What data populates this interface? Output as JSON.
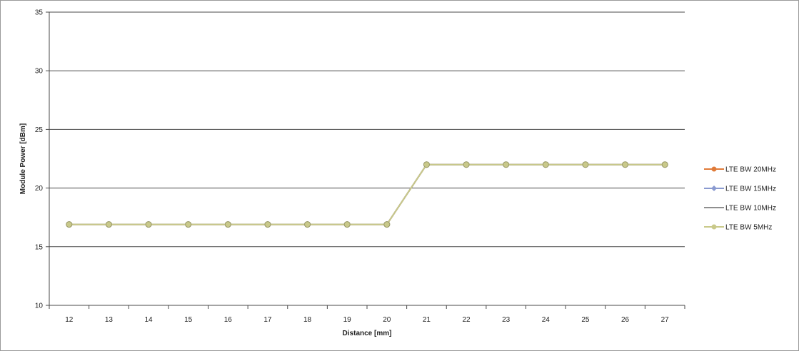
{
  "chart_data": {
    "type": "line",
    "title": "",
    "xlabel": "Distance [mm]",
    "ylabel": "Module Power [dBm]",
    "categories": [
      "12",
      "13",
      "14",
      "15",
      "16",
      "17",
      "18",
      "19",
      "20",
      "21",
      "22",
      "23",
      "24",
      "25",
      "26",
      "27"
    ],
    "ylim": [
      10,
      35
    ],
    "yticks": [
      "10",
      "15",
      "20",
      "25",
      "30",
      "35"
    ],
    "grid": true,
    "legend_position": "right",
    "series": [
      {
        "name": "LTE BW 20MHz",
        "color": "#e07b39",
        "marker": "circle",
        "values": [
          16.9,
          16.9,
          16.9,
          16.9,
          16.9,
          16.9,
          16.9,
          16.9,
          16.9,
          22,
          22,
          22,
          22,
          22,
          22,
          22
        ]
      },
      {
        "name": "LTE BW 15MHz",
        "color": "#8a9ad0",
        "marker": "diamond",
        "values": [
          16.9,
          16.9,
          16.9,
          16.9,
          16.9,
          16.9,
          16.9,
          16.9,
          16.9,
          22,
          22,
          22,
          22,
          22,
          22,
          22
        ]
      },
      {
        "name": "LTE BW 10MHz",
        "color": "#8f8f8f",
        "marker": "none",
        "values": [
          16.9,
          16.9,
          16.9,
          16.9,
          16.9,
          16.9,
          16.9,
          16.9,
          16.9,
          22,
          22,
          22,
          22,
          22,
          22,
          22
        ]
      },
      {
        "name": "LTE BW 5MHz",
        "color": "#c9c98a",
        "marker": "circle",
        "values": [
          16.9,
          16.9,
          16.9,
          16.9,
          16.9,
          16.9,
          16.9,
          16.9,
          16.9,
          22,
          22,
          22,
          22,
          22,
          22,
          22
        ]
      }
    ]
  }
}
